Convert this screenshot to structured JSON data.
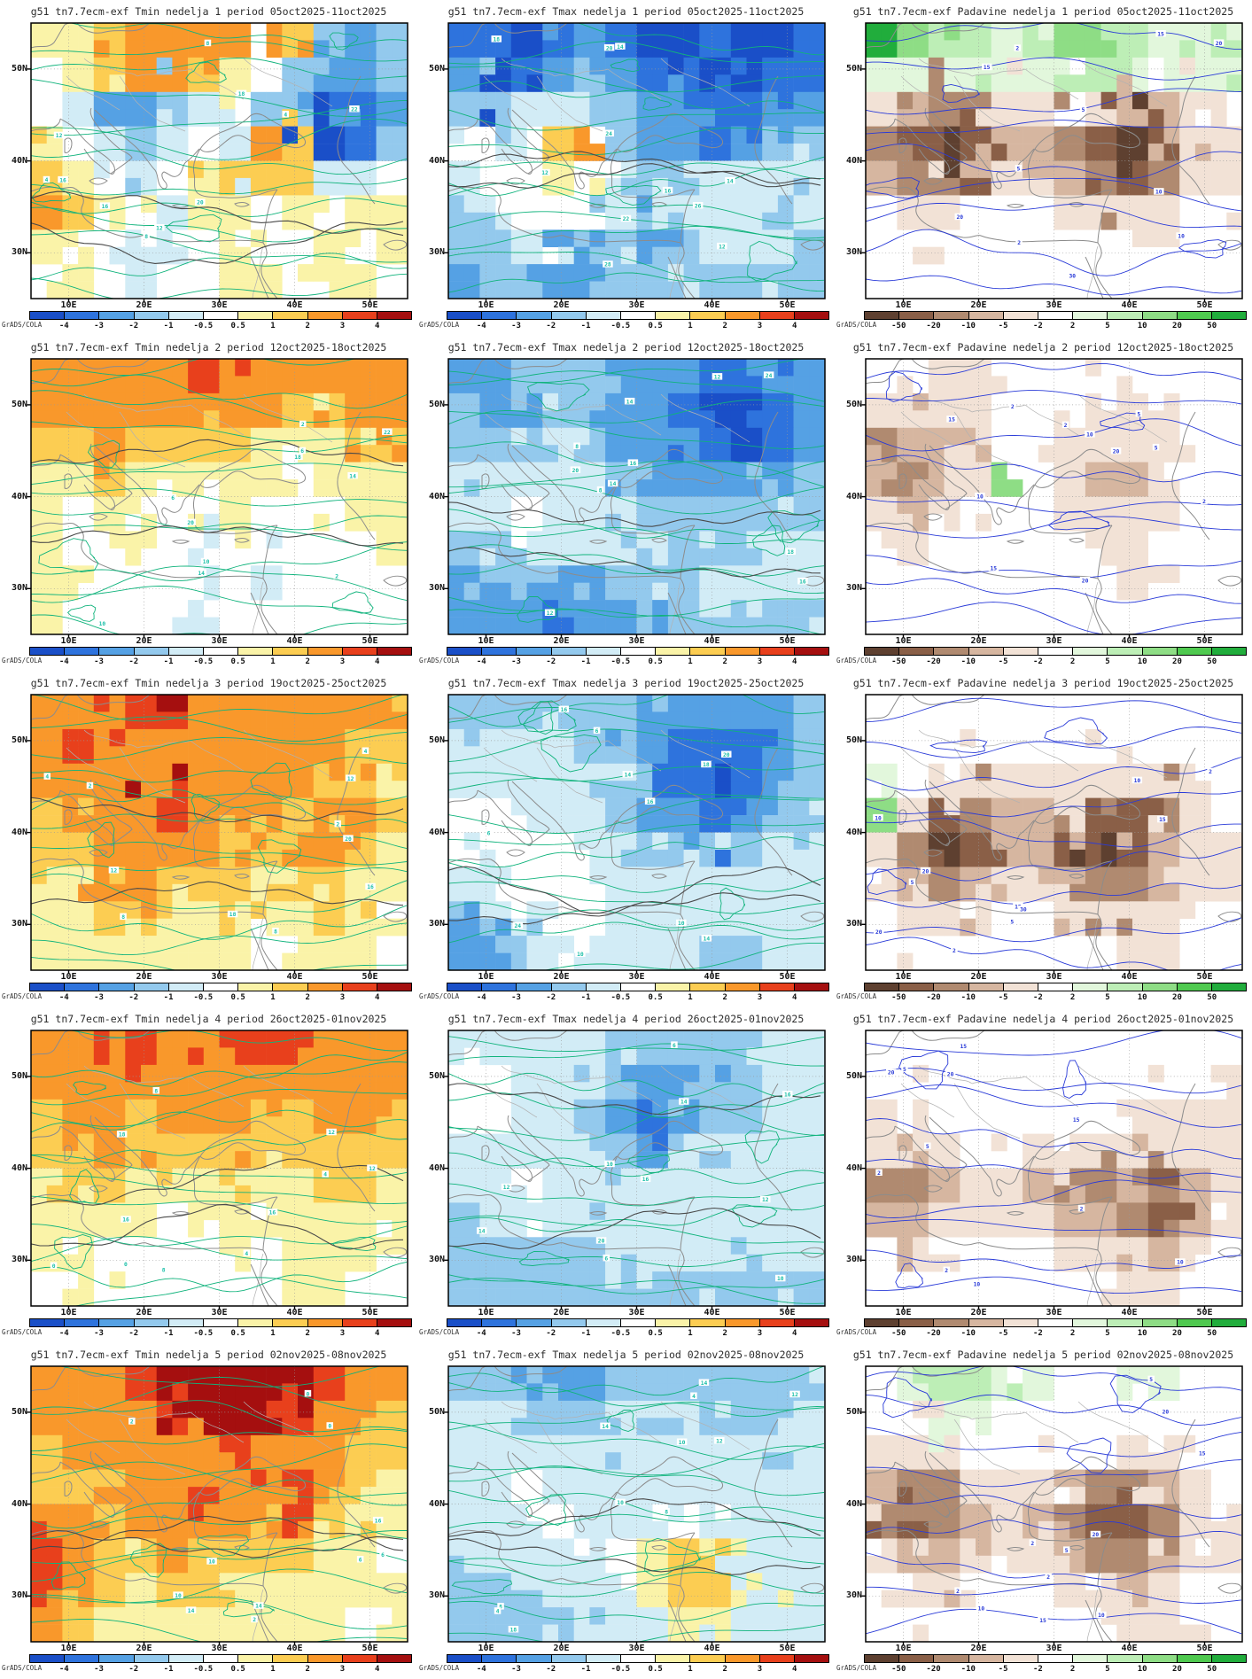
{
  "credit": "GrADS/COLA",
  "axes": {
    "lat_labels": [
      "50N",
      "40N",
      "30N"
    ],
    "lon_labels": [
      "10E",
      "20E",
      "30E",
      "40E",
      "50E"
    ]
  },
  "colorbars": {
    "temperature": {
      "tick_labels": [
        "-4",
        "-3",
        "-2",
        "-1",
        "-0.5",
        "0.5",
        "1",
        "2",
        "3",
        "4"
      ],
      "colors": [
        "#1a4fc8",
        "#2e73dd",
        "#55a1e4",
        "#93c9ed",
        "#d2ecf6",
        "#ffffff",
        "#faf3a8",
        "#fccd52",
        "#f9982b",
        "#e8401c",
        "#a50f0f"
      ]
    },
    "precipitation": {
      "tick_labels": [
        "-50",
        "-20",
        "-10",
        "-5",
        "-2",
        "2",
        "5",
        "10",
        "20",
        "50"
      ],
      "colors": [
        "#5e4030",
        "#8a5f47",
        "#b08a70",
        "#d6b6a0",
        "#f2e2d6",
        "#ffffff",
        "#e2f7dc",
        "#bdeeb6",
        "#8edd85",
        "#4fc94f",
        "#21ad3c"
      ]
    }
  },
  "line_colors": {
    "temperature_contour": "#10b37c",
    "temperature_label": "#1abfa8",
    "precipitation_contour": "#2a3bd8",
    "precipitation_label": "#2a3bd8",
    "coastline": "#8c8c8c",
    "border": "#b2b2b2",
    "dark_contour": "#4a4a4a"
  },
  "weeks": [
    {
      "week": "1",
      "period": "05oct2025-11oct2025"
    },
    {
      "week": "2",
      "period": "12oct2025-18oct2025"
    },
    {
      "week": "3",
      "period": "19oct2025-25oct2025"
    },
    {
      "week": "4",
      "period": "26oct2025-01nov2025"
    },
    {
      "week": "5",
      "period": "02nov2025-08nov2025"
    }
  ],
  "panels": [
    {
      "title": "g51 tn7.7ecm-exf Tmin nedelja 1 period 05oct2025-11oct2025",
      "variable": "Tmin",
      "week": "1",
      "period": "05oct2025-11oct2025",
      "colorbar": "temperature",
      "contour_labels": [
        "4",
        "8",
        "12",
        "16",
        "18",
        "20",
        "22"
      ],
      "fill_grid": [
        "667888887323",
        "567887653223",
        "542234532112",
        "654345487013",
        "765456777445",
        "876546656566",
        "665445655656",
        "565455665665"
      ]
    },
    {
      "title": "g51 tn7.7ecm-exf Tmax nedelja 1 period 05oct2025-11oct2025",
      "variable": "Tmax",
      "week": "1",
      "period": "05oct2025-11oct2025",
      "colorbar": "temperature",
      "contour_labels": [
        "12",
        "14",
        "16",
        "18",
        "20",
        "22",
        "24",
        "26",
        "28"
      ],
      "fill_grid": [
        "110121001001",
        "201232110011",
        "334443221122",
        "554783221233",
        "455654334444",
        "345554444434",
        "334233234443",
        "233223343333"
      ]
    },
    {
      "title": "g51 tn7.7ecm-exf Padavine nedelja 1 period 05oct2025-11oct2025",
      "variable": "Padavine",
      "week": "1",
      "period": "05oct2025-11oct2025",
      "colorbar": "precipitation",
      "contour_labels": [
        "2",
        "5",
        "10",
        "15",
        "20",
        "30"
      ],
      "fill_grid": [
        "A87767887667",
        "666666776566",
        "432244543345",
        "210133210134",
        "322344321244",
        "544555444455",
        "555555555455",
        "555555555555"
      ]
    },
    {
      "title": "g51 tn7.7ecm-exf Tmin nedelja 2 period 12oct2025-18oct2025",
      "variable": "Tmin",
      "week": "2",
      "period": "12oct2025-18oct2025",
      "colorbar": "temperature",
      "contour_labels": [
        "2",
        "6",
        "10",
        "14",
        "18",
        "20",
        "22"
      ],
      "fill_grid": [
        "888889888888",
        "888888887788",
        "778777766677",
        "667666665666",
        "656655655566",
        "655654555556",
        "665555545555",
        "655544555555"
      ]
    },
    {
      "title": "g51 tn7.7ecm-exf Tmax nedelja 2 period 12oct2025-18oct2025",
      "variable": "Tmax",
      "week": "2",
      "period": "12oct2025-18oct2025",
      "colorbar": "temperature",
      "contour_labels": [
        "8",
        "12",
        "14",
        "16",
        "18",
        "20",
        "24"
      ],
      "fill_grid": [
        "223332221122",
        "322332210012",
        "333432221012",
        "444443222223",
        "445444333333",
        "334444433344",
        "223223334444",
        "222122233333"
      ]
    },
    {
      "title": "g51 tn7.7ecm-exf Padavine nedelja 2 period 12oct2025-18oct2025",
      "variable": "Padavine",
      "week": "2",
      "period": "12oct2025-18oct2025",
      "colorbar": "precipitation",
      "contour_labels": [
        "2",
        "5",
        "10",
        "15",
        "20"
      ],
      "fill_grid": [
        "554455555555",
        "444455544455",
        "233455444455",
        "323485433455",
        "434555444455",
        "545555544555",
        "555555554455",
        "555555555555"
      ]
    },
    {
      "title": "g51 tn7.7ecm-exf Tmin nedelja 3 period 19oct2025-25oct2025",
      "variable": "Tmin",
      "week": "3",
      "period": "19oct2025-25oct2025",
      "colorbar": "temperature",
      "contour_labels": [
        "2",
        "4",
        "8",
        "12",
        "16",
        "18",
        "20"
      ],
      "fill_grid": [
        "8889A8888888",
        "898888888877",
        "8888A8888776",
        "788898887887",
        "778888778876",
        "678877767766",
        "667766766766",
        "666666656665"
      ]
    },
    {
      "title": "g51 tn7.7ecm-exf Tmax nedelja 3 period 19oct2025-25oct2025",
      "variable": "Tmax",
      "week": "3",
      "period": "19oct2025-25oct2025",
      "colorbar": "temperature",
      "contour_labels": [
        "6",
        "10",
        "14",
        "16",
        "18",
        "20",
        "24"
      ],
      "fill_grid": [
        "333333222223",
        "444433211123",
        "444443110123",
        "554443221233",
        "555544333344",
        "445554444444",
        "234554444444",
        "223444443344"
      ]
    },
    {
      "title": "g51 tn7.7ecm-exf Padavine nedelja 3 period 19oct2025-25oct2025",
      "variable": "Padavine",
      "week": "3",
      "period": "19oct2025-25oct2025",
      "colorbar": "precipitation",
      "contour_labels": [
        "2",
        "5",
        "10",
        "15",
        "20",
        "30"
      ],
      "fill_grid": [
        "555555555555",
        "555555555555",
        "654444444455",
        "841233211245",
        "420133101344",
        "432344322344",
        "544455444455",
        "555555554455"
      ]
    },
    {
      "title": "g51 tn7.7ecm-exf Tmin nedelja 4 period 26oct2025-01nov2025",
      "variable": "Tmin",
      "week": "4",
      "period": "26oct2025-01nov2025",
      "colorbar": "temperature",
      "contour_labels": [
        "0",
        "4",
        "8",
        "12",
        "16",
        "18"
      ],
      "fill_grid": [
        "889988999888",
        "888888888888",
        "788788877887",
        "778777777777",
        "677666766776",
        "666656666666",
        "665555656665",
        "565555556655"
      ]
    },
    {
      "title": "g51 tn7.7ecm-exf Tmax nedelja 4 period 26oct2025-01nov2025",
      "variable": "Tmax",
      "week": "4",
      "period": "26oct2025-01nov2025",
      "colorbar": "temperature",
      "contour_labels": [
        "6",
        "10",
        "12",
        "14",
        "16",
        "20"
      ],
      "fill_grid": [
        "444443333344",
        "554443223344",
        "554432123344",
        "444443234444",
        "445444444444",
        "344444444444",
        "333334444444",
        "333333333333"
      ]
    },
    {
      "title": "g51 tn7.7ecm-exf Padavine nedelja 4 period 26oct2025-01nov2025",
      "variable": "Padavine",
      "week": "4",
      "period": "26oct2025-01nov2025",
      "colorbar": "precipitation",
      "contour_labels": [
        "2",
        "5",
        "10",
        "15",
        "20"
      ],
      "fill_grid": [
        "555555555555",
        "555555555554",
        "445555554444",
        "434554444444",
        "223443223234",
        "334444332134",
        "544555444345",
        "555555554455"
      ]
    },
    {
      "title": "g51 tn7.7ecm-exf Tmin nedelja 5 period 02nov2025-08nov2025",
      "variable": "Tmin",
      "week": "5",
      "period": "02nov2025-08nov2025",
      "colorbar": "temperature",
      "contour_labels": [
        "0",
        "2",
        "6",
        "10",
        "14",
        "16"
      ],
      "fill_grid": [
        "8889AAAAA988",
        "88889AAA9887",
        "788888988877",
        "778889889876",
        "887888878766",
        "987787777665",
        "987677666666",
        "876666666656"
      ]
    },
    {
      "title": "g51 tn7.7ecm-exf Tmax nedelja 5 period 02nov2025-08nov2025",
      "variable": "Tmax",
      "week": "5",
      "period": "02nov2025-08nov2025",
      "colorbar": "temperature",
      "contour_labels": [
        "4",
        "8",
        "10",
        "12",
        "14",
        "18"
      ],
      "fill_grid": [
        "332223333333",
        "443333443334",
        "444444444444",
        "445444444444",
        "444544454444",
        "444445676444",
        "334444677644",
        "333344466444"
      ]
    },
    {
      "title": "g51 tn7.7ecm-exf Padavine nedelja 5 period 02nov2025-08nov2025",
      "variable": "Padavine",
      "week": "5",
      "period": "02nov2025-08nov2025",
      "colorbar": "precipitation",
      "contour_labels": [
        "2",
        "5",
        "10",
        "15",
        "20"
      ],
      "fill_grid": [
        "567766556655",
        "556655555555",
        "444555554455",
        "322444322345",
        "212343211244",
        "433444322344",
        "544555443455",
        "555555554455"
      ]
    }
  ]
}
